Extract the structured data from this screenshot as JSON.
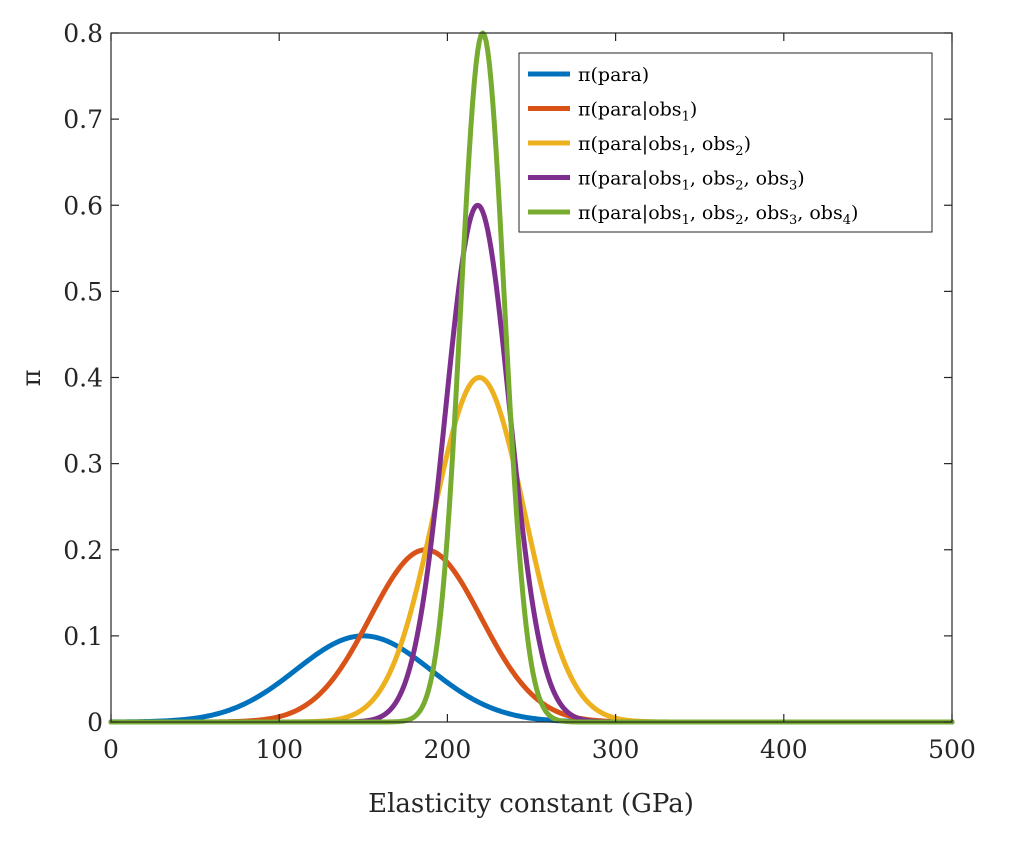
{
  "chart_data": {
    "type": "line",
    "title": "",
    "xlabel": "Elasticity constant (GPa)",
    "ylabel": "π",
    "xlim": [
      0,
      500
    ],
    "ylim": [
      0,
      0.8
    ],
    "xticks": [
      "0",
      "100",
      "200",
      "300",
      "400",
      "500"
    ],
    "yticks": [
      "0",
      "0.1",
      "0.2",
      "0.3",
      "0.4",
      "0.5",
      "0.6",
      "0.7",
      "0.8"
    ],
    "grid": false,
    "legend_position": "top-right",
    "series": [
      {
        "name": "π(para)",
        "legend": {
          "main": "π(para)",
          "subs": []
        },
        "color": "#0072BD",
        "peak_x": 150,
        "peak_y": 0.1,
        "sigma": 40
      },
      {
        "name": "π(para|obs1)",
        "legend": {
          "main": "π(para|obs",
          "subs": [
            "1"
          ],
          "close": ")"
        },
        "color": "#D95319",
        "peak_x": 187,
        "peak_y": 0.2,
        "sigma": 33
      },
      {
        "name": "π(para|obs1, obs2)",
        "legend": {
          "main": "π(para|obs",
          "subs": [
            "1",
            "2"
          ],
          "close": ")"
        },
        "color": "#EDB120",
        "peak_x": 219,
        "peak_y": 0.4,
        "sigma": 27
      },
      {
        "name": "π(para|obs1, obs2, obs3)",
        "legend": {
          "main": "π(para|obs",
          "subs": [
            "1",
            "2",
            "3"
          ],
          "close": ")"
        },
        "color": "#7E2F8E",
        "peak_x": 218,
        "peak_y": 0.6,
        "sigma": 19
      },
      {
        "name": "π(para|obs1, obs2, obs3, obs4)",
        "legend": {
          "main": "π(para|obs",
          "subs": [
            "1",
            "2",
            "3",
            "4"
          ],
          "close": ")"
        },
        "color": "#77AC30",
        "peak_x": 221,
        "peak_y": 0.8,
        "sigma": 13
      }
    ]
  }
}
